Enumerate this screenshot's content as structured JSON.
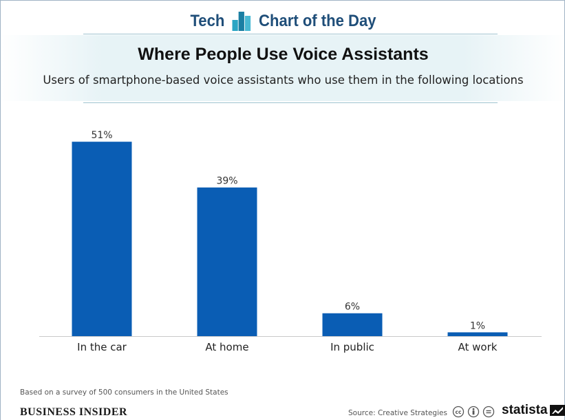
{
  "brand": {
    "left_text": "Tech",
    "right_text": "Chart of the Day",
    "icon": "bar-chart-logo-icon"
  },
  "header": {
    "title": "Where People Use Voice Assistants",
    "subtitle": "Users of smartphone-based voice assistants who use them in the following locations"
  },
  "chart_data": {
    "type": "bar",
    "title": "Where People Use Voice Assistants",
    "subtitle": "Users of smartphone-based voice assistants who use them in the following locations",
    "categories": [
      "In the car",
      "At home",
      "In public",
      "At work"
    ],
    "values": [
      51,
      39,
      6,
      1
    ],
    "data_labels": [
      "51%",
      "39%",
      "6%",
      "1%"
    ],
    "unit": "%",
    "xlabel": "",
    "ylabel": "",
    "ylim": [
      0,
      55
    ],
    "grid": false,
    "legend": "none",
    "bar_color": "#0a5db4"
  },
  "footer": {
    "note": "Based on a survey of 500 consumers in the United States",
    "publisher": "BUSINESS INSIDER",
    "source": "Source: Creative Strategies",
    "license_icons": [
      "cc-icon",
      "by-icon",
      "nd-icon"
    ],
    "statista": "statista"
  },
  "colors": {
    "brand_blue": "#1f4e79",
    "bar": "#0a5db4",
    "band": "#e7f3f6",
    "rule": "#9ec3cf"
  }
}
